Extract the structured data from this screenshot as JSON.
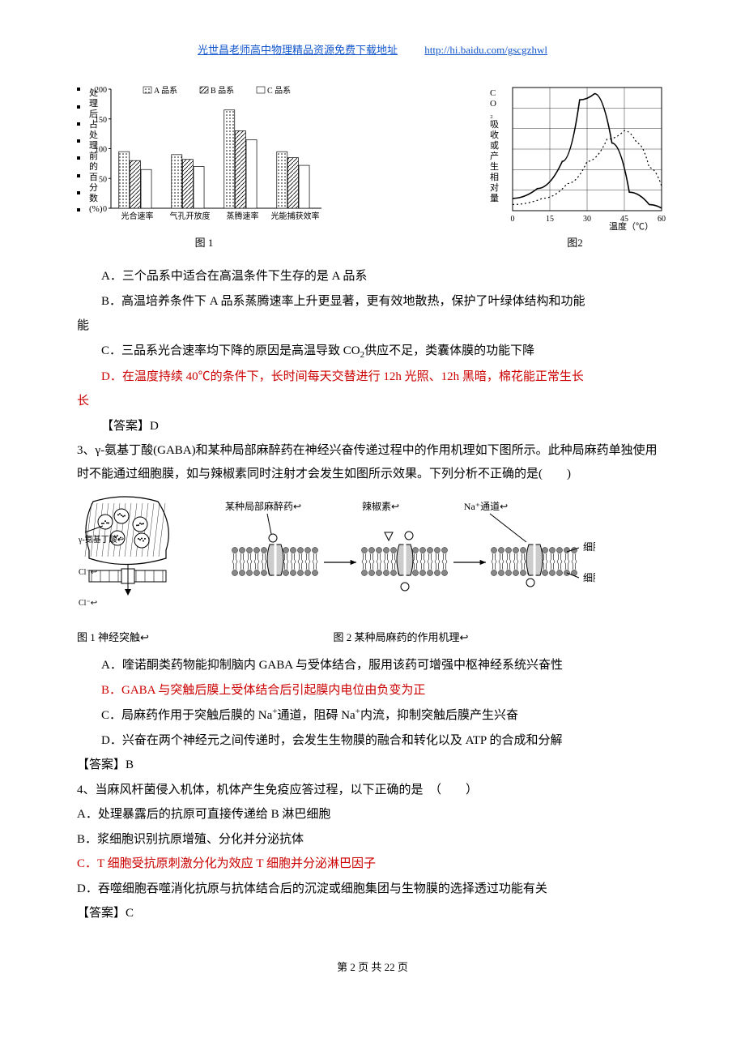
{
  "header": {
    "author": "光世昌老师高中物理精品资源免费下载地址",
    "url": "http://hi.baidu.com/gscgzhwl"
  },
  "fig1": {
    "type": "bar",
    "y_label_lines": [
      "处",
      "理",
      "后",
      "占",
      "处",
      "理",
      "前",
      "的",
      "百",
      "分",
      "数",
      "(%)"
    ],
    "y_ticks": [
      "0",
      "50",
      "100",
      "150",
      "200"
    ],
    "ylim": [
      0,
      200
    ],
    "legend": [
      "A 品系",
      "B 品系",
      "C 品系"
    ],
    "legend_patterns": [
      "dots",
      "diag",
      "blank"
    ],
    "categories": [
      "光合速率",
      "气孔开放度",
      "蒸腾速率",
      "光能捕获效率"
    ],
    "series": {
      "A": [
        95,
        90,
        165,
        95
      ],
      "B": [
        80,
        82,
        130,
        85
      ],
      "C": [
        65,
        70,
        115,
        72
      ]
    },
    "caption": "图 1",
    "colors": {
      "axis": "#000000",
      "text": "#000000",
      "bg": "#ffffff"
    }
  },
  "fig2": {
    "type": "line",
    "y_label": "CO₂吸收或产生相对量",
    "x_label": "温度（℃）",
    "x_ticks": [
      "0",
      "15",
      "30",
      "45",
      "60"
    ],
    "xlim": [
      0,
      60
    ],
    "series": [
      {
        "style": "solid",
        "points": [
          [
            0,
            10
          ],
          [
            10,
            18
          ],
          [
            20,
            40
          ],
          [
            27,
            90
          ],
          [
            33,
            95
          ],
          [
            40,
            55
          ],
          [
            47,
            15
          ],
          [
            55,
            5
          ],
          [
            60,
            2
          ]
        ]
      },
      {
        "style": "dotted",
        "points": [
          [
            0,
            5
          ],
          [
            12,
            10
          ],
          [
            22,
            22
          ],
          [
            30,
            40
          ],
          [
            38,
            58
          ],
          [
            45,
            65
          ],
          [
            50,
            55
          ],
          [
            55,
            35
          ],
          [
            60,
            20
          ]
        ]
      }
    ],
    "caption": "图2",
    "colors": {
      "grid": "#000000",
      "axis": "#000000",
      "bg": "#ffffff"
    }
  },
  "q2": {
    "optA": "A．三个品系中适合在高温条件下生存的是 A 品系",
    "optB": "B．高温培养条件下 A 品系蒸腾速率上升更显著，更有效地散热，保护了叶绿体结构和功能",
    "optB_tail": "能",
    "optC_pre": "C．三品系光合速率均下降的原因是高温导致 CO",
    "optC_post": "供应不足，类囊体膜的功能下降",
    "optD": "D．在温度持续 40℃的条件下，长时间每天交替进行 12h 光照、12h 黑暗，棉花能正常生长",
    "optD_tail": "长",
    "answer_label": "【答案】D"
  },
  "q3": {
    "stem": "3、γ-氨基丁酸(GABA)和某种局部麻醉药在神经兴奋传递过程中的作用机理如下图所示。此种局麻药单独使用时不能通过细胞膜，如与辣椒素同时注射才会发生如图所示效果。下列分析不正确的是(　　)",
    "labels": {
      "gaba": "γ-氨基丁酸↩",
      "cl_out": "Cl⁻↩",
      "cl_in": "Cl⁻↩",
      "anesthetic": "某种局部麻醉药↩",
      "capsaicin": "辣椒素↩",
      "na_channel": "Na⁺通道↩",
      "membrane_out": "细胞膜↩",
      "membrane_in": "细胞内↩",
      "fig1_cap": "图 1 神经突触↩",
      "fig2_cap": "图 2 某种局麻药的作用机理↩"
    },
    "optA": "A．喹诺酮类药物能抑制脑内 GABA 与受体结合，服用该药可增强中枢神经系统兴奋性",
    "optB": "B．GABA 与突触后膜上受体结合后引起膜内电位由负变为正",
    "optC_pre": "C．局麻药作用于突触后膜的 Na",
    "optC_mid": "通道，阻碍 Na",
    "optC_post": "内流，抑制突触后膜产生兴奋",
    "optD": "D．兴奋在两个神经元之间传递时，会发生生物膜的融合和转化以及 ATP 的合成和分解",
    "answer_label": "【答案】B"
  },
  "q4": {
    "stem": "4、当麻风杆菌侵入机体，机体产生免疫应答过程，以下正确的是　（　　）",
    "optA": "A．处理暴露后的抗原可直接传递给 B 淋巴细胞",
    "optB": "B．浆细胞识别抗原增殖、分化并分泌抗体",
    "optC": "C．T 细胞受抗原刺激分化为效应 T 细胞并分泌淋巴因子",
    "optD": "D．吞噬细胞吞噬消化抗原与抗体结合后的沉淀或细胞集团与生物膜的选择透过功能有关",
    "answer_label": "【答案】C"
  },
  "footer": {
    "text": "第 2 页 共 22 页"
  }
}
